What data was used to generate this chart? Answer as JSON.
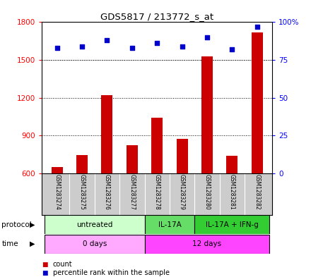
{
  "title": "GDS5817 / 213772_s_at",
  "samples": [
    "GSM1283274",
    "GSM1283275",
    "GSM1283276",
    "GSM1283277",
    "GSM1283278",
    "GSM1283279",
    "GSM1283280",
    "GSM1283281",
    "GSM1283282"
  ],
  "counts": [
    648,
    745,
    1220,
    820,
    1040,
    870,
    1530,
    740,
    1720
  ],
  "percentiles": [
    83,
    84,
    88,
    83,
    86,
    84,
    90,
    82,
    97
  ],
  "ylim_left": [
    600,
    1800
  ],
  "ylim_right": [
    0,
    100
  ],
  "yticks_left": [
    600,
    900,
    1200,
    1500,
    1800
  ],
  "yticks_right": [
    0,
    25,
    50,
    75,
    100
  ],
  "bar_color": "#cc0000",
  "dot_color": "#0000cc",
  "protocol_groups": [
    {
      "label": "untreated",
      "start": 0,
      "end": 4,
      "color": "#ccffcc"
    },
    {
      "label": "IL-17A",
      "start": 4,
      "end": 6,
      "color": "#66dd66"
    },
    {
      "label": "IL-17A + IFN-g",
      "start": 6,
      "end": 9,
      "color": "#33cc33"
    }
  ],
  "time_groups": [
    {
      "label": "0 days",
      "start": 0,
      "end": 4,
      "color": "#ffaaff"
    },
    {
      "label": "12 days",
      "start": 4,
      "end": 9,
      "color": "#ff44ff"
    }
  ],
  "protocol_label": "protocol",
  "time_label": "time",
  "legend_count_label": "count",
  "legend_pct_label": "percentile rank within the sample",
  "background_color": "#ffffff",
  "sample_bg_color": "#cccccc",
  "bar_width": 0.45
}
